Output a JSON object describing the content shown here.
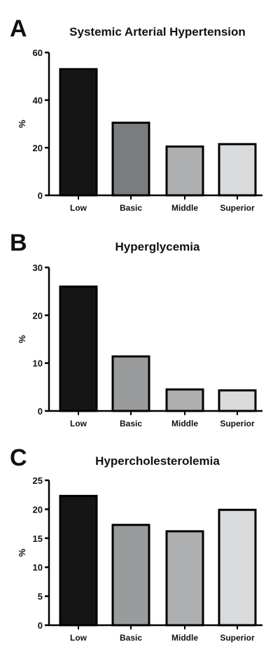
{
  "chart_data": [
    {
      "panel": "A",
      "type": "bar",
      "title": "Systemic Arterial Hypertension",
      "ylabel": "%",
      "xlabel": "",
      "categories": [
        "Low",
        "Basic",
        "Middle",
        "Superior"
      ],
      "values": [
        53,
        30.5,
        20.5,
        21.5
      ],
      "ylim": [
        0,
        60
      ],
      "yticks": [
        0,
        20,
        40,
        60
      ],
      "grid": false,
      "colors": [
        "#151515",
        "#7a7d7f",
        "#adafb1",
        "#d9dadb"
      ]
    },
    {
      "panel": "B",
      "type": "bar",
      "title": "Hyperglycemia",
      "ylabel": "%",
      "xlabel": "",
      "categories": [
        "Low",
        "Basic",
        "Middle",
        "Superior"
      ],
      "values": [
        26,
        11.4,
        4.5,
        4.3
      ],
      "ylim": [
        0,
        30
      ],
      "yticks": [
        0,
        10,
        20,
        30
      ],
      "grid": false,
      "colors": [
        "#151515",
        "#999b9d",
        "#adafb1",
        "#d9dadb"
      ]
    },
    {
      "panel": "C",
      "type": "bar",
      "title": "Hypercholesterolemia",
      "ylabel": "%",
      "xlabel": "",
      "categories": [
        "Low",
        "Basic",
        "Middle",
        "Superior"
      ],
      "values": [
        22.3,
        17.3,
        16.2,
        19.9
      ],
      "ylim": [
        0,
        25
      ],
      "yticks": [
        0,
        5,
        10,
        15,
        20,
        25
      ],
      "grid": false,
      "colors": [
        "#151515",
        "#999b9d",
        "#adafb1",
        "#d9dadb"
      ]
    }
  ]
}
